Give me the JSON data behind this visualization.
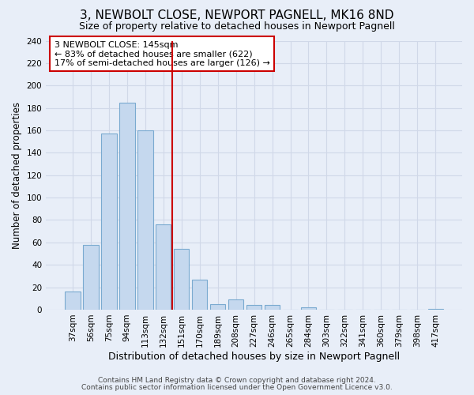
{
  "title": "3, NEWBOLT CLOSE, NEWPORT PAGNELL, MK16 8ND",
  "subtitle": "Size of property relative to detached houses in Newport Pagnell",
  "xlabel": "Distribution of detached houses by size in Newport Pagnell",
  "ylabel": "Number of detached properties",
  "bin_labels": [
    "37sqm",
    "56sqm",
    "75sqm",
    "94sqm",
    "113sqm",
    "132sqm",
    "151sqm",
    "170sqm",
    "189sqm",
    "208sqm",
    "227sqm",
    "246sqm",
    "265sqm",
    "284sqm",
    "303sqm",
    "322sqm",
    "341sqm",
    "360sqm",
    "379sqm",
    "398sqm",
    "417sqm"
  ],
  "bar_values": [
    16,
    58,
    157,
    185,
    160,
    76,
    54,
    27,
    5,
    9,
    4,
    4,
    0,
    2,
    0,
    0,
    0,
    0,
    0,
    0,
    1
  ],
  "bar_color": "#c5d8ee",
  "bar_edge_color": "#7aaad0",
  "vline_x": 5.5,
  "vline_color": "#cc0000",
  "annotation_line1": "3 NEWBOLT CLOSE: 145sqm",
  "annotation_line2": "← 83% of detached houses are smaller (622)",
  "annotation_line3": "17% of semi-detached houses are larger (126) →",
  "annotation_box_color": "#ffffff",
  "annotation_box_edge": "#cc0000",
  "ylim": [
    0,
    240
  ],
  "footer1": "Contains HM Land Registry data © Crown copyright and database right 2024.",
  "footer2": "Contains public sector information licensed under the Open Government Licence v3.0.",
  "background_color": "#e8eef8",
  "grid_color": "#d0d8e8",
  "title_fontsize": 11,
  "subtitle_fontsize": 9,
  "tick_fontsize": 7.5,
  "ylabel_fontsize": 8.5,
  "xlabel_fontsize": 9,
  "annotation_fontsize": 8,
  "footer_fontsize": 6.5
}
